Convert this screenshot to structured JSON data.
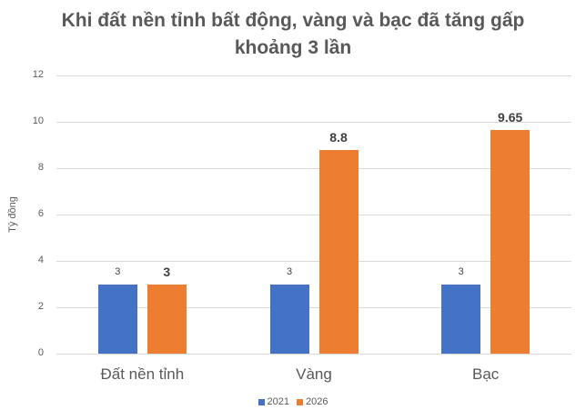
{
  "chart_data": {
    "type": "bar",
    "title": "Khi đất nền tỉnh bất động, vàng và bạc đã tăng gấp khoảng 3 lần",
    "title_lines": [
      "Khi đất nền tỉnh bất động, vàng và bạc đã tăng gấp",
      "khoảng 3 lần"
    ],
    "xlabel": "",
    "ylabel": "Tỷ đồng",
    "ylim": [
      0,
      12
    ],
    "yticks": [
      "0",
      "2",
      "4",
      "6",
      "8",
      "10",
      "12"
    ],
    "grid": true,
    "legend_position": "bottom",
    "categories": [
      "Đất nền tỉnh",
      "Vàng",
      "Bạc"
    ],
    "series": [
      {
        "name": "2021",
        "color": "#4472c4",
        "values": [
          3,
          3,
          3
        ],
        "labels": [
          "3",
          "3",
          "3"
        ]
      },
      {
        "name": "2026",
        "color": "#ed7d31",
        "values": [
          3,
          8.8,
          9.65
        ],
        "labels": [
          "3",
          "8.8",
          "9.65"
        ]
      }
    ]
  }
}
